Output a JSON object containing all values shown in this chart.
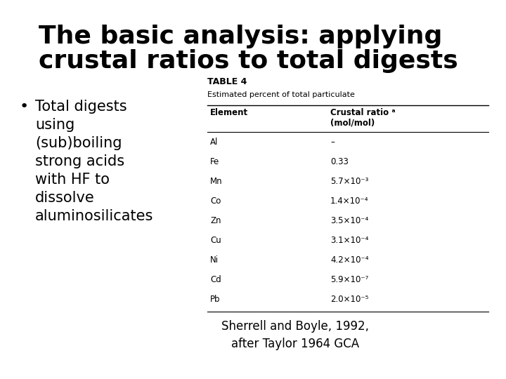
{
  "bg_color": "#ffffff",
  "title_line1": "The basic analysis: applying",
  "title_line2": "crustal ratios to total digests",
  "title_fontsize": 26,
  "title_color": "#000000",
  "bullet_text": "Total digests\nusing\n(sub)boiling\nstrong acids\nwith HF to\ndissolve\naluminosilicates",
  "bullet_fontsize": 15,
  "table_title": "TABLE 4",
  "table_subtitle": "Estimated percent of total particulate",
  "table_col1_header": "Element",
  "table_col2_header": "Crustal ratio ᵃ\n(mol/mol)",
  "table_elements": [
    "Al",
    "Fe",
    "Mn",
    "Co",
    "Zn",
    "Cu",
    "Ni",
    "Cd",
    "Pb"
  ],
  "table_ratios": [
    "–",
    "0.33",
    "5.7×10⁻³",
    "1.4×10⁻⁴",
    "3.5×10⁻⁴",
    "3.1×10⁻⁴",
    "4.2×10⁻⁴",
    "5.9×10⁻⁷",
    "2.0×10⁻⁵"
  ],
  "citation": "Sherrell and Boyle, 1992,\nafter Taylor 1964 GCA",
  "citation_fontsize": 12
}
